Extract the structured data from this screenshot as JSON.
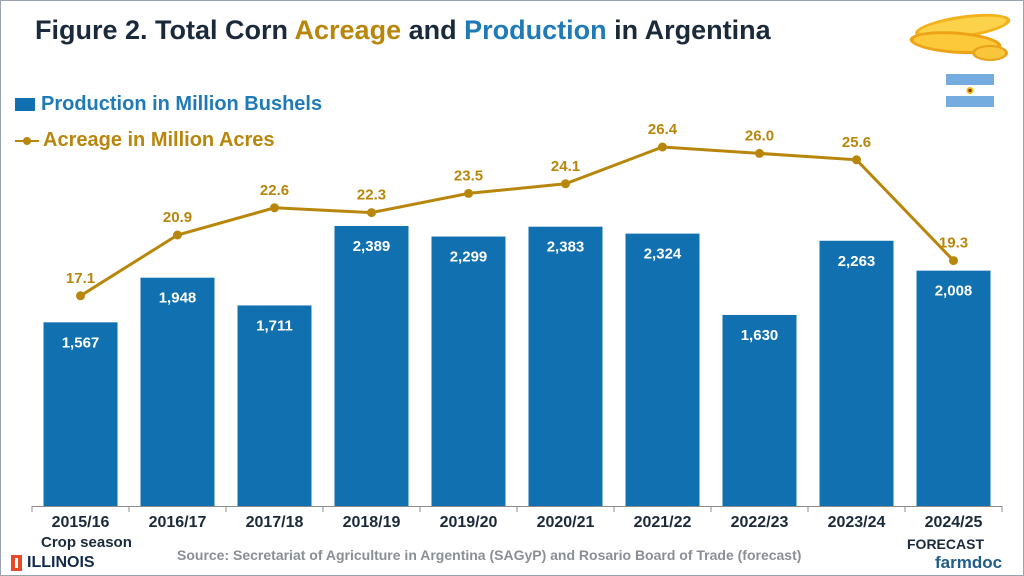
{
  "title": {
    "prefix": "Figure 2. Total Corn",
    "acreage_word": "Acreage",
    "and_word": "and",
    "production_word": "Production",
    "suffix": "in Argentina"
  },
  "legend": {
    "production": "Production in Million Bushels",
    "acreage": "Acreage in Million Acres"
  },
  "colors": {
    "bar": "#1070b0",
    "line": "#b8860b",
    "title": "#1b2a3a",
    "production_text": "#1f7ab8"
  },
  "chart_data": {
    "type": "bar",
    "categories": [
      "2015/16",
      "2016/17",
      "2017/18",
      "2018/19",
      "2019/20",
      "2020/21",
      "2021/22",
      "2022/23",
      "2023/24",
      "2024/25"
    ],
    "series": [
      {
        "name": "Production in Million Bushels",
        "type": "bar",
        "values": [
          1567,
          1948,
          1711,
          2389,
          2299,
          2383,
          2324,
          1630,
          2263,
          2008
        ],
        "labels": [
          "1,567",
          "1,948",
          "1,711",
          "2,389",
          "2,299",
          "2,383",
          "2,324",
          "1,630",
          "2,263",
          "2,008"
        ]
      },
      {
        "name": "Acreage in Million Acres",
        "type": "line",
        "values": [
          17.1,
          20.9,
          22.6,
          22.3,
          23.5,
          24.1,
          26.4,
          26.0,
          25.6,
          19.3
        ],
        "labels": [
          "17.1",
          "20.9",
          "22.6",
          "22.3",
          "23.5",
          "24.1",
          "26.4",
          "26.0",
          "25.6",
          "19.3"
        ]
      }
    ],
    "xlabel": "Crop season",
    "y_axis_hidden": true,
    "legend_position": "top-left",
    "grid": false
  },
  "notes": {
    "source": "Source: Secretariat of Agriculture in Argentina (SAGyP) and Rosario Board of Trade (forecast)",
    "forecast": "FORECAST"
  },
  "branding": {
    "left_logo": "ILLINOIS",
    "right_logo": "farmdoc"
  },
  "icons": {
    "corn": "corn-cobs-icon",
    "flag": "argentina-flag-icon"
  }
}
